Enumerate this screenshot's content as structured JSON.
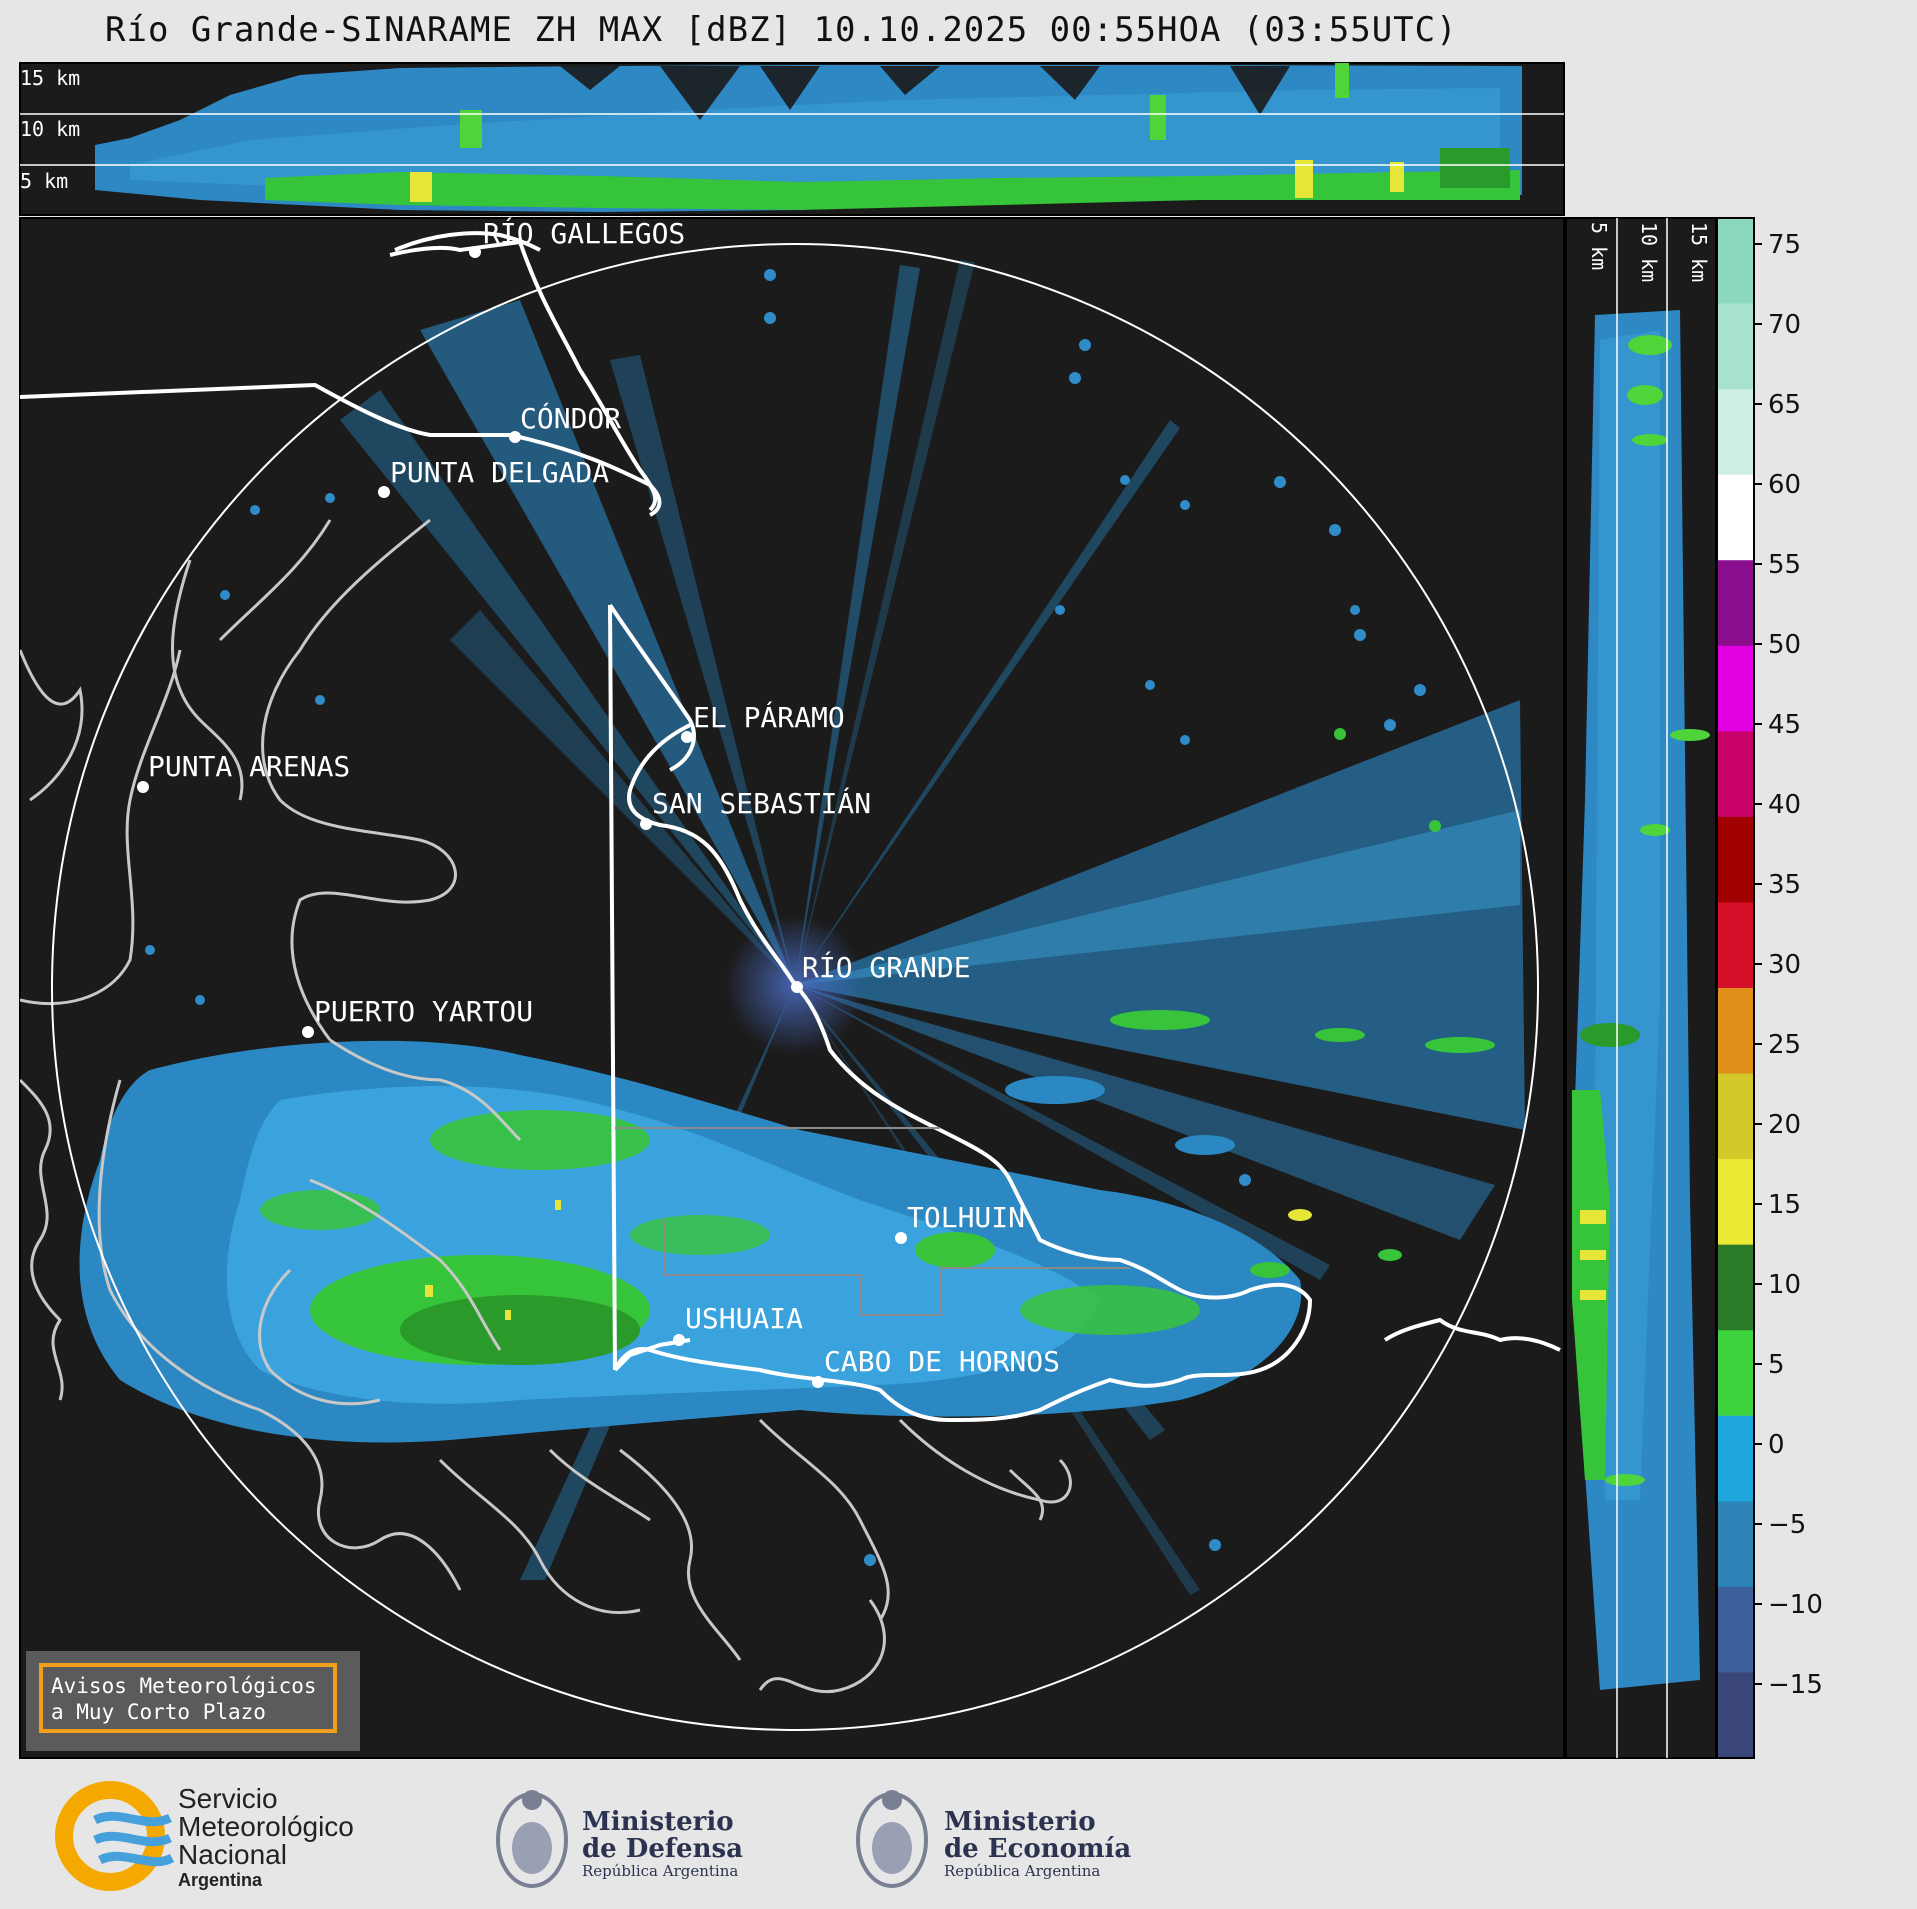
{
  "title": "Río Grande-SINARAME ZH MAX [dBZ] 10.10.2025 00:55HOA (03:55UTC)",
  "top_panel": {
    "altitude_labels": [
      "15 km",
      "10 km",
      "5 km"
    ]
  },
  "side_panel": {
    "altitude_labels": [
      "5 km",
      "10 km",
      "15 km"
    ]
  },
  "places": [
    {
      "name": "RÍO GALLEGOS"
    },
    {
      "name": "CÓNDOR"
    },
    {
      "name": "PUNTA DELGADA"
    },
    {
      "name": "EL PÁRAMO"
    },
    {
      "name": "SAN SEBASTIÁN"
    },
    {
      "name": "PUNTA ARENAS"
    },
    {
      "name": "RÍO GRANDE"
    },
    {
      "name": "PUERTO YARTOU"
    },
    {
      "name": "TOLHUIN"
    },
    {
      "name": "USHUAIA"
    },
    {
      "name": "CABO DE HORNOS"
    }
  ],
  "colorbar": {
    "unit": "dBZ",
    "ticks": [
      "75",
      "70",
      "65",
      "60",
      "55",
      "50",
      "45",
      "40",
      "35",
      "30",
      "25",
      "20",
      "15",
      "10",
      "5",
      "0",
      "−5",
      "−10",
      "−15"
    ],
    "colors": [
      "#8ad9bf",
      "#a6e2cd",
      "#cdeee0",
      "#ffffff",
      "#8a0e8e",
      "#e200e2",
      "#c7006a",
      "#a00000",
      "#d4102a",
      "#e0901a",
      "#d4c82a",
      "#eaea35",
      "#2a7a2a",
      "#3fd43f",
      "#1ea6dd",
      "#2b83b8",
      "#3c5f9a",
      "#3b4678"
    ]
  },
  "alert": {
    "line1": "Avisos Meteorológicos",
    "line2": "a Muy Corto Plazo",
    "accent": "#f2a01c"
  },
  "logos": {
    "smn": [
      "Servicio",
      "Meteorológico",
      "Nacional",
      "Argentina"
    ],
    "defensa": [
      "Ministerio",
      "de Defensa",
      "República Argentina"
    ],
    "economia": [
      "Ministerio",
      "de Economía",
      "República Argentina"
    ]
  }
}
